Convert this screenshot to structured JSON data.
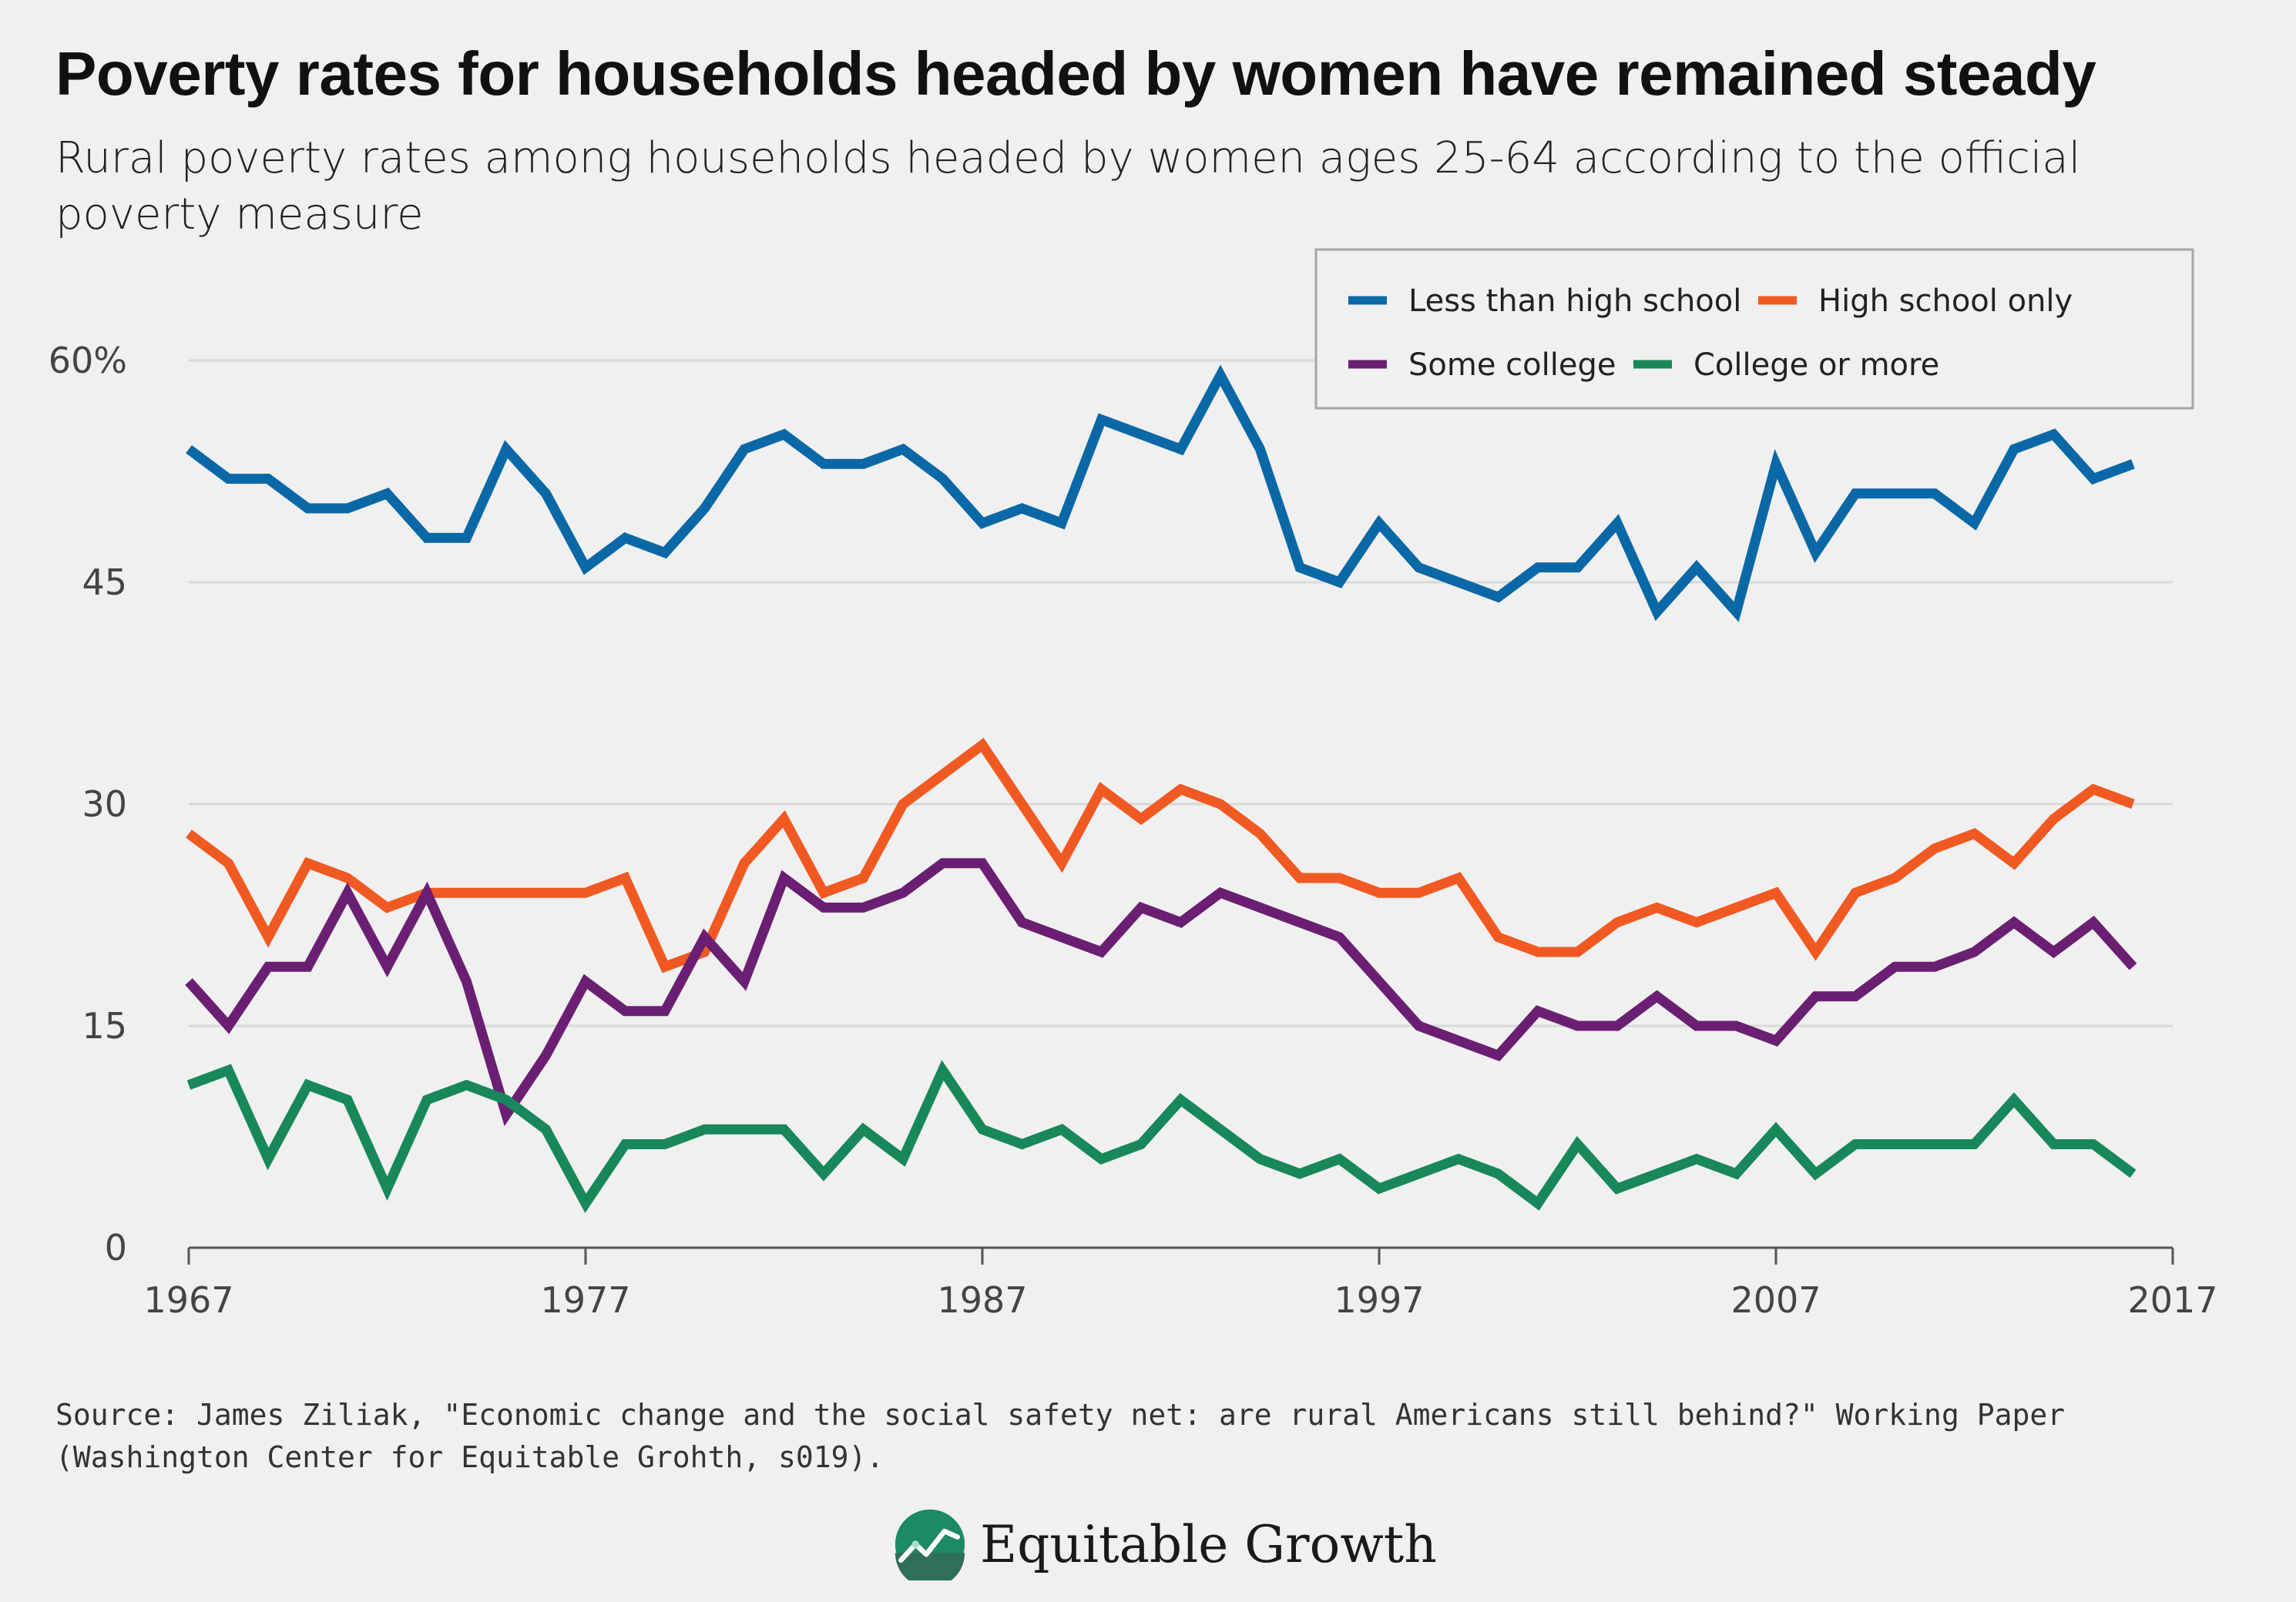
{
  "title": "Poverty rates for households headed by women have remained steady",
  "subtitle": "Rural poverty rates among households headed by women ages 25-64 according to the official poverty measure",
  "source": "Source: James Ziliak, \"Economic change and the social safety net: are rural Americans still behind?\" Working Paper (Washington Center for Equitable Grohth, s019).",
  "logo": {
    "text": "Equitable Growth",
    "icon": "growth-chart-logo-icon"
  },
  "chart_data": {
    "type": "line",
    "xlim": [
      1967,
      2017
    ],
    "ylim": [
      0,
      60
    ],
    "grid": true,
    "legend_position": "top-right",
    "x_ticks": [
      {
        "value": 1967,
        "label": "1967"
      },
      {
        "value": 1977,
        "label": "1977"
      },
      {
        "value": 1987,
        "label": "1987"
      },
      {
        "value": 1997,
        "label": "1997"
      },
      {
        "value": 2007,
        "label": "2007"
      },
      {
        "value": 2017,
        "label": "2017"
      }
    ],
    "y_ticks": [
      {
        "value": 0,
        "label": "0"
      },
      {
        "value": 15,
        "label": "15"
      },
      {
        "value": 30,
        "label": "30"
      },
      {
        "value": 45,
        "label": "45"
      },
      {
        "value": 60,
        "label": "60%"
      }
    ],
    "x": [
      1967,
      1968,
      1969,
      1970,
      1971,
      1972,
      1973,
      1974,
      1975,
      1976,
      1977,
      1978,
      1979,
      1980,
      1981,
      1982,
      1983,
      1984,
      1985,
      1986,
      1987,
      1988,
      1989,
      1990,
      1991,
      1992,
      1993,
      1994,
      1995,
      1996,
      1997,
      1998,
      1999,
      2000,
      2001,
      2002,
      2003,
      2004,
      2005,
      2006,
      2007,
      2008,
      2009,
      2010,
      2011,
      2012,
      2013,
      2014,
      2015,
      2016
    ],
    "series": [
      {
        "name": "Less than high school",
        "color": "#0a68a6",
        "values": [
          54,
          52,
          52,
          50,
          50,
          51,
          48,
          48,
          54,
          51,
          46,
          48,
          47,
          50,
          54,
          55,
          53,
          53,
          54,
          52,
          49,
          50,
          49,
          56,
          55,
          54,
          59,
          54,
          46,
          45,
          49,
          46,
          45,
          44,
          46,
          46,
          49,
          43,
          46,
          43,
          53,
          47,
          51,
          51,
          51,
          49,
          54,
          55,
          52,
          53
        ]
      },
      {
        "name": "High school only",
        "color": "#f05a22",
        "values": [
          28,
          26,
          21,
          26,
          25,
          23,
          24,
          24,
          24,
          24,
          24,
          25,
          19,
          20,
          26,
          29,
          24,
          25,
          30,
          32,
          34,
          30,
          26,
          31,
          29,
          31,
          30,
          28,
          25,
          25,
          24,
          24,
          25,
          21,
          20,
          20,
          22,
          23,
          22,
          23,
          24,
          20,
          24,
          25,
          27,
          28,
          26,
          29,
          31,
          30
        ]
      },
      {
        "name": "Some college",
        "color": "#6b1f73",
        "values": [
          18,
          15,
          19,
          19,
          24,
          19,
          24,
          18,
          9,
          13,
          18,
          16,
          16,
          21,
          18,
          25,
          23,
          23,
          24,
          26,
          26,
          22,
          21,
          20,
          23,
          22,
          24,
          23,
          22,
          21,
          18,
          15,
          14,
          13,
          16,
          15,
          15,
          17,
          15,
          15,
          14,
          17,
          17,
          19,
          19,
          20,
          22,
          20,
          22,
          19
        ]
      },
      {
        "name": "College or more",
        "color": "#18875a",
        "values": [
          11,
          12,
          6,
          11,
          10,
          4,
          10,
          11,
          10,
          8,
          3,
          7,
          7,
          8,
          8,
          8,
          5,
          8,
          6,
          12,
          8,
          7,
          8,
          6,
          7,
          10,
          8,
          6,
          5,
          6,
          4,
          5,
          6,
          5,
          3,
          7,
          4,
          5,
          6,
          5,
          8,
          5,
          7,
          7,
          7,
          7,
          10,
          7,
          7,
          5
        ]
      }
    ]
  }
}
